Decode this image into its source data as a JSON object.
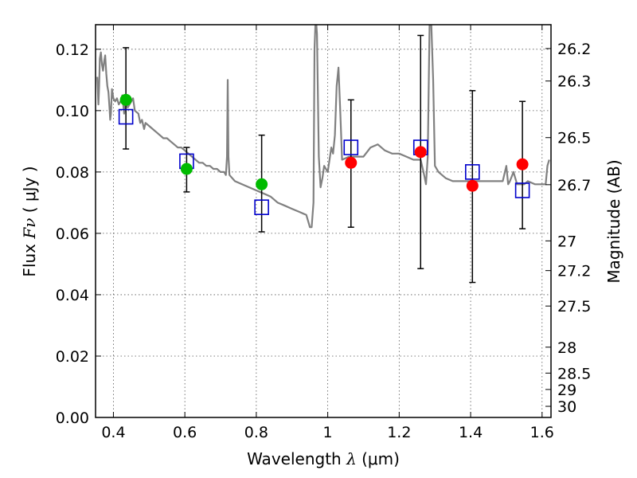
{
  "chart_data": {
    "type": "scatter",
    "xlabel_prefix": "Wavelength",
    "xlabel_symbol": "λ",
    "xlabel_unit": "(μm)",
    "ylabel_prefix": "Flux",
    "ylabel_symbol": "Fν",
    "ylabel_unit": "( μJy )",
    "y2label": "Magnitude (AB)",
    "xlim": [
      0.35,
      1.625
    ],
    "ylim": [
      0.0,
      0.128
    ],
    "grid": true,
    "x_ticks": [
      {
        "value": 0.4,
        "label": "0.4"
      },
      {
        "value": 0.6,
        "label": "0.6"
      },
      {
        "value": 0.8,
        "label": "0.8"
      },
      {
        "value": 1.0,
        "label": "1"
      },
      {
        "value": 1.2,
        "label": "1.2"
      },
      {
        "value": 1.4,
        "label": "1.4"
      },
      {
        "value": 1.6,
        "label": "1.6"
      }
    ],
    "y_ticks": [
      {
        "value": 0.0,
        "label": "0.00"
      },
      {
        "value": 0.02,
        "label": "0.02"
      },
      {
        "value": 0.04,
        "label": "0.04"
      },
      {
        "value": 0.06,
        "label": "0.06"
      },
      {
        "value": 0.08,
        "label": "0.08"
      },
      {
        "value": 0.1,
        "label": "0.10"
      },
      {
        "value": 0.12,
        "label": "0.12"
      }
    ],
    "mag_ticks": [
      {
        "mag": 26.2,
        "label": "26.2"
      },
      {
        "mag": 26.3,
        "label": "26.3"
      },
      {
        "mag": 26.5,
        "label": "26.5"
      },
      {
        "mag": 26.7,
        "label": "26.7"
      },
      {
        "mag": 27.0,
        "label": "27"
      },
      {
        "mag": 27.2,
        "label": "27.2"
      },
      {
        "mag": 27.5,
        "label": "27.5"
      },
      {
        "mag": 28.0,
        "label": "28"
      },
      {
        "mag": 28.5,
        "label": "28.5"
      },
      {
        "mag": 29.0,
        "label": "29"
      },
      {
        "mag": 30.0,
        "label": "30"
      }
    ],
    "colors": {
      "green": "#00bb00",
      "red": "#ff0000",
      "model_box": "#0000cc",
      "sed": "#808080",
      "errorbar": "#000000",
      "grid": "#555555"
    },
    "series": [
      {
        "kind": "line",
        "points": [
          [
            0.355,
            0.111
          ],
          [
            0.358,
            0.102
          ],
          [
            0.36,
            0.108
          ],
          [
            0.362,
            0.117
          ],
          [
            0.365,
            0.119
          ],
          [
            0.368,
            0.115
          ],
          [
            0.371,
            0.113
          ],
          [
            0.374,
            0.116
          ],
          [
            0.377,
            0.118
          ],
          [
            0.38,
            0.112
          ],
          [
            0.383,
            0.108
          ],
          [
            0.386,
            0.106
          ],
          [
            0.389,
            0.101
          ],
          [
            0.391,
            0.097
          ],
          [
            0.393,
            0.099
          ],
          [
            0.396,
            0.107
          ],
          [
            0.4,
            0.104
          ],
          [
            0.405,
            0.103
          ],
          [
            0.41,
            0.104
          ],
          [
            0.415,
            0.102
          ],
          [
            0.42,
            0.103
          ],
          [
            0.425,
            0.105
          ],
          [
            0.43,
            0.099
          ],
          [
            0.435,
            0.104
          ],
          [
            0.44,
            0.101
          ],
          [
            0.45,
            0.103
          ],
          [
            0.455,
            0.104
          ],
          [
            0.46,
            0.1
          ],
          [
            0.47,
            0.099
          ],
          [
            0.475,
            0.096
          ],
          [
            0.48,
            0.097
          ],
          [
            0.486,
            0.094
          ],
          [
            0.49,
            0.096
          ],
          [
            0.5,
            0.095
          ],
          [
            0.51,
            0.094
          ],
          [
            0.52,
            0.093
          ],
          [
            0.53,
            0.092
          ],
          [
            0.54,
            0.091
          ],
          [
            0.55,
            0.091
          ],
          [
            0.56,
            0.09
          ],
          [
            0.57,
            0.089
          ],
          [
            0.58,
            0.088
          ],
          [
            0.59,
            0.088
          ],
          [
            0.6,
            0.087
          ],
          [
            0.61,
            0.086
          ],
          [
            0.62,
            0.085
          ],
          [
            0.63,
            0.084
          ],
          [
            0.64,
            0.083
          ],
          [
            0.65,
            0.083
          ],
          [
            0.66,
            0.082
          ],
          [
            0.67,
            0.082
          ],
          [
            0.68,
            0.081
          ],
          [
            0.69,
            0.081
          ],
          [
            0.7,
            0.08
          ],
          [
            0.71,
            0.08
          ],
          [
            0.715,
            0.079
          ],
          [
            0.718,
            0.085
          ],
          [
            0.72,
            0.11
          ],
          [
            0.722,
            0.085
          ],
          [
            0.725,
            0.079
          ],
          [
            0.74,
            0.077
          ],
          [
            0.76,
            0.076
          ],
          [
            0.78,
            0.075
          ],
          [
            0.8,
            0.074
          ],
          [
            0.82,
            0.073
          ],
          [
            0.84,
            0.072
          ],
          [
            0.86,
            0.07
          ],
          [
            0.88,
            0.069
          ],
          [
            0.9,
            0.068
          ],
          [
            0.92,
            0.067
          ],
          [
            0.94,
            0.066
          ],
          [
            0.95,
            0.062
          ],
          [
            0.955,
            0.062
          ],
          [
            0.96,
            0.07
          ],
          [
            0.963,
            0.12
          ],
          [
            0.966,
            0.13
          ],
          [
            0.968,
            0.128
          ],
          [
            0.97,
            0.125
          ],
          [
            0.975,
            0.085
          ],
          [
            0.98,
            0.075
          ],
          [
            0.985,
            0.078
          ],
          [
            0.99,
            0.082
          ],
          [
            1.0,
            0.08
          ],
          [
            1.01,
            0.088
          ],
          [
            1.015,
            0.086
          ],
          [
            1.02,
            0.092
          ],
          [
            1.025,
            0.108
          ],
          [
            1.03,
            0.114
          ],
          [
            1.035,
            0.1
          ],
          [
            1.04,
            0.084
          ],
          [
            1.06,
            0.085
          ],
          [
            1.08,
            0.085
          ],
          [
            1.1,
            0.085
          ],
          [
            1.12,
            0.088
          ],
          [
            1.14,
            0.089
          ],
          [
            1.16,
            0.087
          ],
          [
            1.18,
            0.086
          ],
          [
            1.2,
            0.086
          ],
          [
            1.22,
            0.085
          ],
          [
            1.24,
            0.084
          ],
          [
            1.26,
            0.084
          ],
          [
            1.27,
            0.079
          ],
          [
            1.275,
            0.076
          ],
          [
            1.28,
            0.085
          ],
          [
            1.285,
            0.128
          ],
          [
            1.29,
            0.128
          ],
          [
            1.295,
            0.11
          ],
          [
            1.3,
            0.082
          ],
          [
            1.31,
            0.08
          ],
          [
            1.33,
            0.078
          ],
          [
            1.35,
            0.077
          ],
          [
            1.4,
            0.077
          ],
          [
            1.45,
            0.077
          ],
          [
            1.49,
            0.077
          ],
          [
            1.5,
            0.082
          ],
          [
            1.505,
            0.076
          ],
          [
            1.51,
            0.077
          ],
          [
            1.52,
            0.08
          ],
          [
            1.53,
            0.076
          ],
          [
            1.55,
            0.076
          ],
          [
            1.56,
            0.077
          ],
          [
            1.58,
            0.076
          ],
          [
            1.6,
            0.076
          ],
          [
            1.61,
            0.076
          ],
          [
            1.615,
            0.082
          ],
          [
            1.62,
            0.084
          ]
        ]
      },
      {
        "kind": "observed",
        "color": "green",
        "points": [
          {
            "x": 0.435,
            "y": 0.1035,
            "err": [
              0.0875,
              0.1205
            ]
          },
          {
            "x": 0.605,
            "y": 0.081,
            "err": [
              0.0735,
              0.088
            ]
          },
          {
            "x": 0.815,
            "y": 0.076,
            "err": [
              0.0605,
              0.092
            ]
          }
        ]
      },
      {
        "kind": "observed",
        "color": "red",
        "points": [
          {
            "x": 1.065,
            "y": 0.083,
            "err": [
              0.062,
              0.1035
            ]
          },
          {
            "x": 1.26,
            "y": 0.0865,
            "err": [
              0.0485,
              0.1245
            ]
          },
          {
            "x": 1.405,
            "y": 0.0755,
            "err": [
              0.044,
              0.1065
            ]
          },
          {
            "x": 1.545,
            "y": 0.0825,
            "err": [
              0.0615,
              0.103
            ]
          }
        ]
      },
      {
        "kind": "model",
        "points": [
          {
            "x": 0.435,
            "y": 0.098
          },
          {
            "x": 0.605,
            "y": 0.0835
          },
          {
            "x": 0.815,
            "y": 0.0685
          },
          {
            "x": 1.065,
            "y": 0.088
          },
          {
            "x": 1.26,
            "y": 0.088
          },
          {
            "x": 1.405,
            "y": 0.08
          },
          {
            "x": 1.545,
            "y": 0.074
          }
        ]
      }
    ]
  }
}
